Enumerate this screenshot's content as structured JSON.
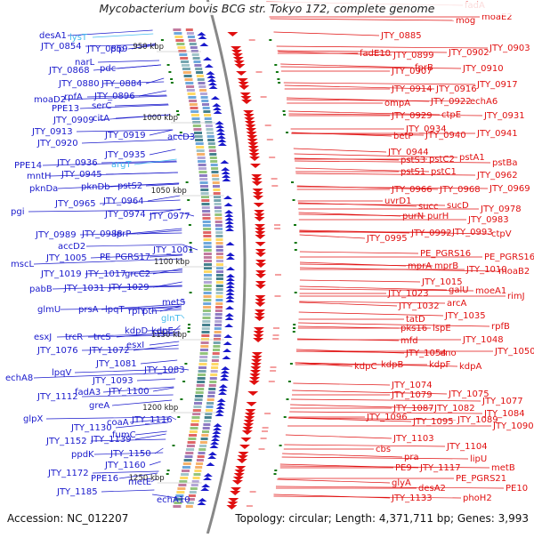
{
  "title": "Mycobacterium bovis BCG str. Tokyo 172, complete genome",
  "footer": {
    "accession": "Accession: NC_012207",
    "summary": "Topology: circular; Length: 4,371,711 bp; Genes: 3,993"
  },
  "colors": {
    "left_strand": "#1a1acc",
    "right_strand": "#e01010",
    "trna": "#44bbee",
    "backbone": "#888888",
    "tick": "#117711"
  },
  "ticks": [
    "950 kbp",
    "1000 kbp",
    "1050 kbp",
    "1100 kbp",
    "1150 kbp",
    "1200 kbp",
    "1250 kbp"
  ],
  "left_labels": [
    {
      "text": "desA1",
      "color": "blue"
    },
    {
      "text": "lysT",
      "color": "cyan"
    },
    {
      "text": "JTY_0854",
      "color": "blue"
    },
    {
      "text": "JTY_0859",
      "color": "blue"
    },
    {
      "text": "pip",
      "color": "blue"
    },
    {
      "text": "narL",
      "color": "blue"
    },
    {
      "text": "JTY_0868",
      "color": "blue"
    },
    {
      "text": "pdc",
      "color": "blue"
    },
    {
      "text": "JTY_0880",
      "color": "blue"
    },
    {
      "text": "JTY_0884",
      "color": "blue"
    },
    {
      "text": "moaD2",
      "color": "blue"
    },
    {
      "text": "rpfA",
      "color": "blue"
    },
    {
      "text": "JTY_0896",
      "color": "blue"
    },
    {
      "text": "PPE13",
      "color": "blue"
    },
    {
      "text": "serC",
      "color": "blue"
    },
    {
      "text": "JTY_0909",
      "color": "blue"
    },
    {
      "text": "citA",
      "color": "blue"
    },
    {
      "text": "JTY_0913",
      "color": "blue"
    },
    {
      "text": "JTY_0919",
      "color": "blue"
    },
    {
      "text": "JTY_0920",
      "color": "blue"
    },
    {
      "text": "accD3",
      "color": "blue"
    },
    {
      "text": "JTY_0935",
      "color": "blue"
    },
    {
      "text": "PPE14",
      "color": "blue"
    },
    {
      "text": "JTY_0936",
      "color": "blue"
    },
    {
      "text": "argT",
      "color": "cyan"
    },
    {
      "text": "mntH",
      "color": "blue"
    },
    {
      "text": "JTY_0945",
      "color": "blue"
    },
    {
      "text": "pknDa",
      "color": "blue"
    },
    {
      "text": "pknDb",
      "color": "blue"
    },
    {
      "text": "pstS2",
      "color": "blue"
    },
    {
      "text": "JTY_0964",
      "color": "blue"
    },
    {
      "text": "JTY_0965",
      "color": "blue"
    },
    {
      "text": "pgi",
      "color": "blue"
    },
    {
      "text": "JTY_0974",
      "color": "blue"
    },
    {
      "text": "JTY_0977",
      "color": "blue"
    },
    {
      "text": "JTY_0989",
      "color": "blue"
    },
    {
      "text": "JTY_0988",
      "color": "blue"
    },
    {
      "text": "lprP",
      "color": "blue"
    },
    {
      "text": "accD2",
      "color": "blue"
    },
    {
      "text": "JTY_1001",
      "color": "blue"
    },
    {
      "text": "JTY_1005",
      "color": "blue"
    },
    {
      "text": "PE_PGRS17",
      "color": "blue"
    },
    {
      "text": "mscL",
      "color": "blue"
    },
    {
      "text": "JTY_1019",
      "color": "blue"
    },
    {
      "text": "JTY_1017",
      "color": "blue"
    },
    {
      "text": "grcC2",
      "color": "blue"
    },
    {
      "text": "pabB",
      "color": "blue"
    },
    {
      "text": "JTY_1031",
      "color": "blue"
    },
    {
      "text": "JTY_1029",
      "color": "blue"
    },
    {
      "text": "metS",
      "color": "blue"
    },
    {
      "text": "glmU",
      "color": "blue"
    },
    {
      "text": "prsA",
      "color": "blue"
    },
    {
      "text": "lpqT",
      "color": "blue"
    },
    {
      "text": "rplY",
      "color": "blue"
    },
    {
      "text": "pth",
      "color": "blue"
    },
    {
      "text": "glnT",
      "color": "cyan"
    },
    {
      "text": "kdpD",
      "color": "blue"
    },
    {
      "text": "kdpE",
      "color": "blue"
    },
    {
      "text": "esxJ",
      "color": "blue"
    },
    {
      "text": "trcR",
      "color": "blue"
    },
    {
      "text": "trcS",
      "color": "blue"
    },
    {
      "text": "esxI",
      "color": "blue"
    },
    {
      "text": "JTY_1076",
      "color": "blue"
    },
    {
      "text": "JTY_1072",
      "color": "blue"
    },
    {
      "text": "JTY_1081",
      "color": "blue"
    },
    {
      "text": "JTY_1083",
      "color": "blue"
    },
    {
      "text": "echA8",
      "color": "blue"
    },
    {
      "text": "lpqV",
      "color": "blue"
    },
    {
      "text": "JTY_1093",
      "color": "blue"
    },
    {
      "text": "fadA3",
      "color": "blue"
    },
    {
      "text": "JTY_1100",
      "color": "blue"
    },
    {
      "text": "JTY_1112",
      "color": "blue"
    },
    {
      "text": "greA",
      "color": "blue"
    },
    {
      "text": "JTY_1116",
      "color": "blue"
    },
    {
      "text": "glpX",
      "color": "blue"
    },
    {
      "text": "JTY_1130",
      "color": "blue"
    },
    {
      "text": "coaA",
      "color": "blue"
    },
    {
      "text": "JTY_1152",
      "color": "blue"
    },
    {
      "text": "JTY_1139",
      "color": "blue"
    },
    {
      "text": "fumC",
      "color": "blue"
    },
    {
      "text": "ppdK",
      "color": "blue"
    },
    {
      "text": "JTY_1150",
      "color": "blue"
    },
    {
      "text": "JTY_1160",
      "color": "blue"
    },
    {
      "text": "JTY_1172",
      "color": "blue"
    },
    {
      "text": "PPE16",
      "color": "blue"
    },
    {
      "text": "metE",
      "color": "blue"
    },
    {
      "text": "JTY_1185",
      "color": "blue"
    },
    {
      "text": "echA10",
      "color": "blue"
    }
  ],
  "right_labels": [
    {
      "text": "fadA"
    },
    {
      "text": "mog"
    },
    {
      "text": "moaE2"
    },
    {
      "text": "JTY_0885"
    },
    {
      "text": "JTY_0903"
    },
    {
      "text": "fadE10"
    },
    {
      "text": "JTY_0899"
    },
    {
      "text": "JTY_0902"
    },
    {
      "text": "JTY_0907"
    },
    {
      "text": "fprB"
    },
    {
      "text": "JTY_0910"
    },
    {
      "text": "JTY_0914"
    },
    {
      "text": "JTY_0916"
    },
    {
      "text": "JTY_0917"
    },
    {
      "text": "ompA"
    },
    {
      "text": "JTY_0922"
    },
    {
      "text": "echA6"
    },
    {
      "text": "JTY_0929"
    },
    {
      "text": "ctpE"
    },
    {
      "text": "JTY_0931"
    },
    {
      "text": "JTY_0934"
    },
    {
      "text": "betP"
    },
    {
      "text": "JTY_0940"
    },
    {
      "text": "JTY_0941"
    },
    {
      "text": "JTY_0944"
    },
    {
      "text": "pstS3"
    },
    {
      "text": "pstC2"
    },
    {
      "text": "pstA1"
    },
    {
      "text": "pstBa"
    },
    {
      "text": "pstS1"
    },
    {
      "text": "pstC1"
    },
    {
      "text": "JTY_0962"
    },
    {
      "text": "JTY_0966"
    },
    {
      "text": "JTY_0968"
    },
    {
      "text": "JTY_0969"
    },
    {
      "text": "uvrD1"
    },
    {
      "text": "succ"
    },
    {
      "text": "sucD"
    },
    {
      "text": "JTY_0978"
    },
    {
      "text": "purN"
    },
    {
      "text": "purH"
    },
    {
      "text": "JTY_0983"
    },
    {
      "text": "JTY_0995"
    },
    {
      "text": "JTY_0992"
    },
    {
      "text": "JTY_0993"
    },
    {
      "text": "ctpV"
    },
    {
      "text": "PE_PGRS16"
    },
    {
      "text": "PE_PGRS16"
    },
    {
      "text": "mprA"
    },
    {
      "text": "mprB"
    },
    {
      "text": "JTY_1010"
    },
    {
      "text": "moaB2"
    },
    {
      "text": "JTY_1015"
    },
    {
      "text": "JTY_1023"
    },
    {
      "text": "galU"
    },
    {
      "text": "moeA1"
    },
    {
      "text": "rimJ"
    },
    {
      "text": "JTY_1032"
    },
    {
      "text": "arcA"
    },
    {
      "text": "tatD"
    },
    {
      "text": "JTY_1035"
    },
    {
      "text": "pks16"
    },
    {
      "text": "lspE"
    },
    {
      "text": "rpfB"
    },
    {
      "text": "mfd"
    },
    {
      "text": "JTY_1048"
    },
    {
      "text": "JTY_1054"
    },
    {
      "text": "eno"
    },
    {
      "text": "JTY_1050"
    },
    {
      "text": "kdpC"
    },
    {
      "text": "kdpB"
    },
    {
      "text": "kdpF"
    },
    {
      "text": "kdpA"
    },
    {
      "text": "JTY_1074"
    },
    {
      "text": "JTY_1079"
    },
    {
      "text": "JTY_1075"
    },
    {
      "text": "JTY_1077"
    },
    {
      "text": "JTY_1087"
    },
    {
      "text": "JTY_1082"
    },
    {
      "text": "JTY_1084"
    },
    {
      "text": "JTY_1096"
    },
    {
      "text": "JTY_1095"
    },
    {
      "text": "JTY_1089"
    },
    {
      "text": "JTY_1090"
    },
    {
      "text": "JTY_1103"
    },
    {
      "text": "JTY_1104"
    },
    {
      "text": "cbs"
    },
    {
      "text": "pra"
    },
    {
      "text": "lipU"
    },
    {
      "text": "PE9"
    },
    {
      "text": "JTY_1117"
    },
    {
      "text": "metB"
    },
    {
      "text": "PE_PGRS21"
    },
    {
      "text": "glyA"
    },
    {
      "text": "PE10"
    },
    {
      "text": "desA2"
    },
    {
      "text": "JTY_1133"
    },
    {
      "text": "phoH2"
    }
  ]
}
